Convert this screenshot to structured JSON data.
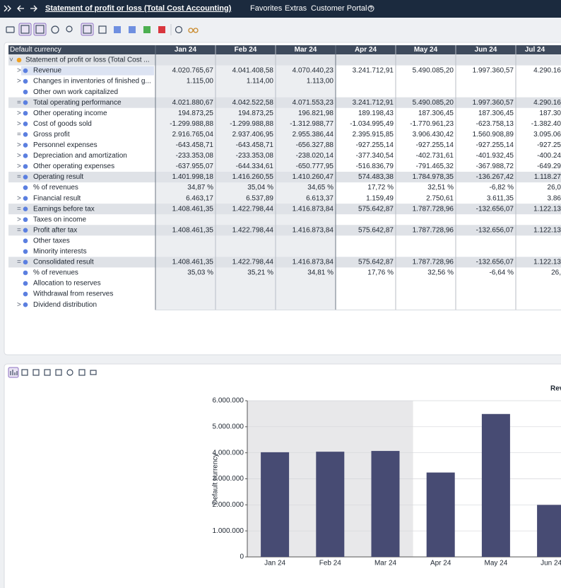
{
  "header": {
    "title": "Statement of profit or loss (Total Cost Accounting)",
    "menu": [
      "Favorites",
      "Extras",
      "Customer Portal"
    ]
  },
  "table": {
    "corner": "Default currency",
    "columns": [
      "Jan 24",
      "Feb 24",
      "Mar 24",
      "Apr 24",
      "May 24",
      "Jun 24",
      "Jul 24"
    ],
    "rows": [
      {
        "prefix": "˅",
        "label": "Statement of profit or loss (Total Cost ...",
        "highlight": true,
        "cells": [
          null,
          null,
          null,
          null,
          null,
          null,
          null
        ]
      },
      {
        "prefix": ">",
        "label": "Revenue",
        "selected": true,
        "cells": [
          "4.020.765,67",
          "4.041.408,58",
          "4.070.440,23",
          "3.241.712,91",
          "5.490.085,20",
          "1.997.360,57",
          "4.290.16"
        ]
      },
      {
        "prefix": ">",
        "label": "Changes in inventories of finished g...",
        "cells": [
          "1.115,00",
          "1.114,00",
          "1.113,00",
          null,
          null,
          null,
          null
        ]
      },
      {
        "label": "Other own work capitalized",
        "cells": [
          null,
          null,
          null,
          null,
          null,
          null,
          null
        ]
      },
      {
        "prefix": "=",
        "label": "Total operating performance",
        "highlight": true,
        "cells": [
          "4.021.880,67",
          "4.042.522,58",
          "4.071.553,23",
          "3.241.712,91",
          "5.490.085,20",
          "1.997.360,57",
          "4.290.16"
        ]
      },
      {
        "prefix": ">",
        "label": "Other operating income",
        "cells": [
          "194.873,25",
          "194.873,25",
          "196.821,98",
          "189.198,43",
          "187.306,45",
          "187.306,45",
          "187.30"
        ]
      },
      {
        "prefix": ">",
        "label": "Cost of goods sold",
        "cells": [
          "-1.299.988,88",
          "-1.299.988,88",
          "-1.312.988,77",
          "-1.034.995,49",
          "-1.770.961,23",
          "-623.758,13",
          "-1.382.40"
        ]
      },
      {
        "prefix": "=",
        "label": "Gross profit",
        "cells": [
          "2.916.765,04",
          "2.937.406,95",
          "2.955.386,44",
          "2.395.915,85",
          "3.906.430,42",
          "1.560.908,89",
          "3.095.06"
        ]
      },
      {
        "prefix": ">",
        "label": "Personnel expenses",
        "cells": [
          "-643.458,71",
          "-643.458,71",
          "-656.327,88",
          "-927.255,14",
          "-927.255,14",
          "-927.255,14",
          "-927.25"
        ]
      },
      {
        "prefix": ">",
        "label": "Depreciation and amortization",
        "cells": [
          "-233.353,08",
          "-233.353,08",
          "-238.020,14",
          "-377.340,54",
          "-402.731,61",
          "-401.932,45",
          "-400.24"
        ]
      },
      {
        "prefix": ">",
        "label": "Other operating expenses",
        "cells": [
          "-637.955,07",
          "-644.334,61",
          "-650.777,95",
          "-516.836,79",
          "-791.465,32",
          "-367.988,72",
          "-649.29"
        ]
      },
      {
        "prefix": "=",
        "label": "Operating result",
        "highlight": true,
        "cells": [
          "1.401.998,18",
          "1.416.260,55",
          "1.410.260,47",
          "574.483,38",
          "1.784.978,35",
          "-136.267,42",
          "1.118.27"
        ]
      },
      {
        "label": "% of revenues",
        "cells": [
          "34,87 %",
          "35,04 %",
          "34,65 %",
          "17,72 %",
          "32,51 %",
          "-6,82 %",
          "26,0"
        ]
      },
      {
        "prefix": ">",
        "label": "Financial result",
        "cells": [
          "6.463,17",
          "6.537,89",
          "6.613,37",
          "1.159,49",
          "2.750,61",
          "3.611,35",
          "3.86"
        ]
      },
      {
        "prefix": "=",
        "label": "Earnings before tax",
        "highlight": true,
        "cells": [
          "1.408.461,35",
          "1.422.798,44",
          "1.416.873,84",
          "575.642,87",
          "1.787.728,96",
          "-132.656,07",
          "1.122.13"
        ]
      },
      {
        "prefix": ">",
        "label": "Taxes on income",
        "cells": [
          null,
          null,
          null,
          null,
          null,
          null,
          null
        ]
      },
      {
        "prefix": "=",
        "label": "Profit after tax",
        "highlight": true,
        "cells": [
          "1.408.461,35",
          "1.422.798,44",
          "1.416.873,84",
          "575.642,87",
          "1.787.728,96",
          "-132.656,07",
          "1.122.13"
        ]
      },
      {
        "label": "Other taxes",
        "cells": [
          null,
          null,
          null,
          null,
          null,
          null,
          null
        ]
      },
      {
        "label": "Minority interests",
        "cells": [
          null,
          null,
          null,
          null,
          null,
          null,
          null
        ]
      },
      {
        "prefix": "=",
        "label": "Consolidated result",
        "highlight": true,
        "cells": [
          "1.408.461,35",
          "1.422.798,44",
          "1.416.873,84",
          "575.642,87",
          "1.787.728,96",
          "-132.656,07",
          "1.122.13"
        ]
      },
      {
        "label": "% of revenues",
        "cells": [
          "35,03 %",
          "35,21 %",
          "34,81 %",
          "17,76 %",
          "32,56 %",
          "-6,64 %",
          "26,"
        ]
      },
      {
        "label": "Allocation to reserves",
        "cells": [
          null,
          null,
          null,
          null,
          null,
          null,
          null
        ]
      },
      {
        "label": "Withdrawal from reserves",
        "cells": [
          null,
          null,
          null,
          null,
          null,
          null,
          null
        ]
      },
      {
        "prefix": ">",
        "label": "Dividend distribution",
        "cells": [
          null,
          null,
          null,
          null,
          null,
          null,
          null
        ]
      }
    ]
  },
  "chart_data": {
    "type": "bar",
    "ylabel": "Default currency",
    "categories": [
      "Jan 24",
      "Feb 24",
      "Mar 24",
      "Apr 24",
      "May 24",
      "Jun 24"
    ],
    "series": [
      {
        "name": "Revenue",
        "color": "#474b73",
        "values": [
          4020765.67,
          4041408.58,
          4070440.23,
          3241712.91,
          5490085.2,
          1997360.57
        ]
      }
    ],
    "ylim": [
      0,
      6000000
    ],
    "yticks": [
      0,
      {
        "value": 1000000,
        "label": "1.000.000"
      },
      {
        "value": 2000000,
        "label": "2.000.000"
      },
      {
        "value": 3000000,
        "label": "3.000.000"
      },
      {
        "value": 4000000,
        "label": "4.000.000"
      },
      {
        "value": 5000000,
        "label": "5.000.000"
      },
      {
        "value": 6000000,
        "label": "6.000.000"
      }
    ],
    "grid": true
  }
}
